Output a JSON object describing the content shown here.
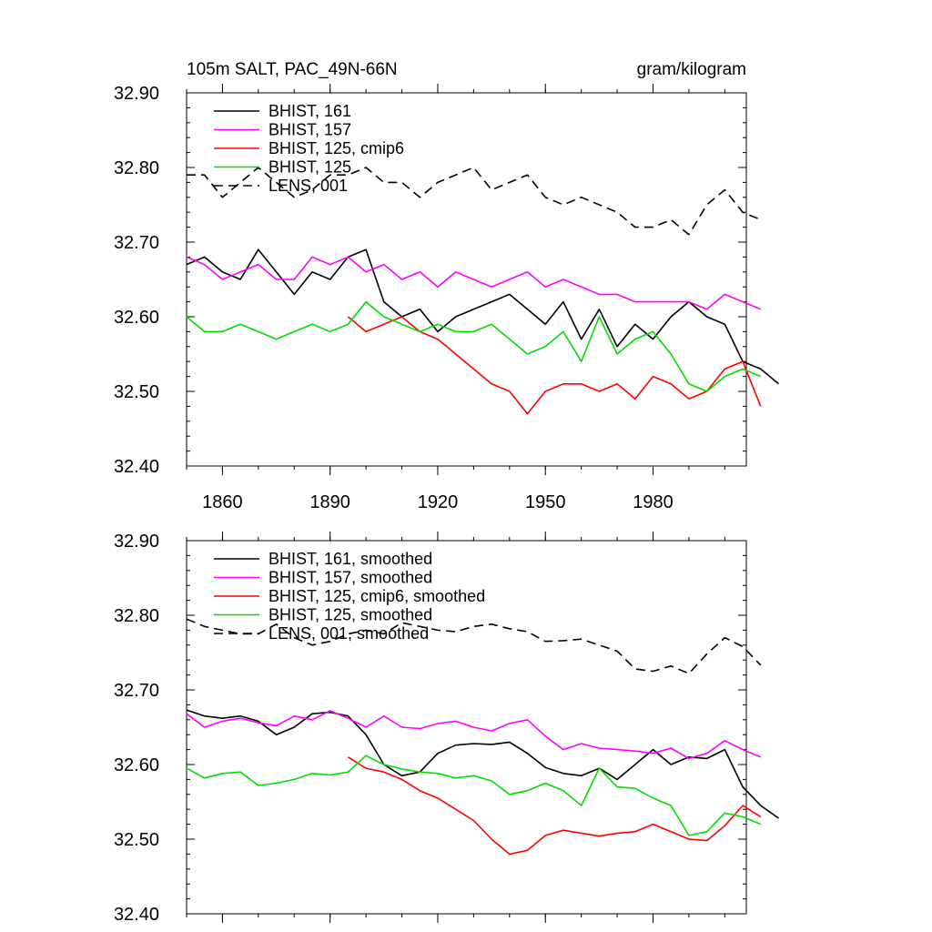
{
  "chart_data": [
    {
      "type": "line",
      "title_left": "105m SALT, PAC_49N-66N",
      "title_right": "gram/kilogram",
      "xlim": [
        1850,
        2006
      ],
      "ylim": [
        32.4,
        32.9
      ],
      "yticks": [
        "32.40",
        "32.50",
        "32.60",
        "32.70",
        "32.80",
        "32.90"
      ],
      "xticks": [
        "1860",
        "1890",
        "1920",
        "1950",
        "1980"
      ],
      "legend_position": "top-left",
      "series": [
        {
          "name": "BHIST, 161",
          "color": "#000000",
          "dash": "solid",
          "x_start": 1850,
          "x_step": 5,
          "values": [
            32.67,
            32.68,
            32.66,
            32.65,
            32.69,
            32.66,
            32.63,
            32.66,
            32.65,
            32.68,
            32.69,
            32.62,
            32.6,
            32.61,
            32.58,
            32.6,
            32.61,
            32.62,
            32.63,
            32.61,
            32.59,
            32.62,
            32.57,
            32.61,
            32.56,
            32.59,
            32.57,
            32.6,
            32.62,
            32.6,
            32.59,
            32.54,
            32.53,
            32.51
          ]
        },
        {
          "name": "BHIST, 157",
          "color": "#ff00ff",
          "dash": "solid",
          "x_start": 1850,
          "x_step": 5,
          "values": [
            32.68,
            32.67,
            32.65,
            32.66,
            32.67,
            32.65,
            32.65,
            32.68,
            32.67,
            32.68,
            32.66,
            32.67,
            32.65,
            32.66,
            32.64,
            32.66,
            32.65,
            32.64,
            32.65,
            32.66,
            32.64,
            32.65,
            32.64,
            32.63,
            32.63,
            32.62,
            32.62,
            32.62,
            32.62,
            32.61,
            32.63,
            32.62,
            32.61
          ]
        },
        {
          "name": "BHIST, 125, cmip6",
          "color": "#ff0000",
          "dash": "solid",
          "x_start": 1895,
          "x_step": 5,
          "values": [
            32.6,
            32.58,
            32.59,
            32.6,
            32.58,
            32.57,
            32.55,
            32.53,
            32.51,
            32.5,
            32.47,
            32.5,
            32.51,
            32.51,
            32.5,
            32.51,
            32.49,
            32.52,
            32.51,
            32.49,
            32.5,
            32.53,
            32.54,
            32.48
          ]
        },
        {
          "name": "BHIST, 125",
          "color": "#00dd00",
          "dash": "solid",
          "x_start": 1850,
          "x_step": 5,
          "values": [
            32.6,
            32.58,
            32.58,
            32.59,
            32.58,
            32.57,
            32.58,
            32.59,
            32.58,
            32.59,
            32.62,
            32.6,
            32.59,
            32.58,
            32.59,
            32.58,
            32.58,
            32.59,
            32.57,
            32.55,
            32.56,
            32.58,
            32.54,
            32.6,
            32.55,
            32.57,
            32.58,
            32.55,
            32.51,
            32.5,
            32.52,
            32.53,
            32.52
          ]
        },
        {
          "name": "LENS, 001",
          "color": "#000000",
          "dash": "dashed",
          "x_start": 1850,
          "x_step": 5,
          "values": [
            32.79,
            32.79,
            32.76,
            32.78,
            32.8,
            32.78,
            32.76,
            32.77,
            32.79,
            32.79,
            32.8,
            32.78,
            32.78,
            32.76,
            32.78,
            32.79,
            32.8,
            32.77,
            32.78,
            32.79,
            32.76,
            32.75,
            32.76,
            32.75,
            32.74,
            32.72,
            32.72,
            32.73,
            32.71,
            32.75,
            32.77,
            32.74,
            32.73
          ]
        }
      ]
    },
    {
      "type": "line",
      "xlim": [
        1850,
        2006
      ],
      "ylim": [
        32.4,
        32.9
      ],
      "yticks": [
        "32.40",
        "32.50",
        "32.60",
        "32.70",
        "32.80",
        "32.90"
      ],
      "legend_position": "top-left",
      "series": [
        {
          "name": "BHIST, 161, smoothed",
          "color": "#000000",
          "dash": "solid",
          "x_start": 1850,
          "x_step": 5,
          "values": [
            32.673,
            32.665,
            32.662,
            32.665,
            32.658,
            32.64,
            32.65,
            32.668,
            32.67,
            32.665,
            32.64,
            32.6,
            32.585,
            32.59,
            32.615,
            32.626,
            32.628,
            32.627,
            32.63,
            32.615,
            32.596,
            32.588,
            32.585,
            32.595,
            32.58,
            32.6,
            32.62,
            32.6,
            32.61,
            32.608,
            32.62,
            32.57,
            32.545,
            32.528
          ]
        },
        {
          "name": "BHIST, 157, smoothed",
          "color": "#ff00ff",
          "dash": "solid",
          "x_start": 1850,
          "x_step": 5,
          "values": [
            32.668,
            32.65,
            32.658,
            32.662,
            32.656,
            32.652,
            32.665,
            32.66,
            32.672,
            32.662,
            32.65,
            32.665,
            32.65,
            32.648,
            32.655,
            32.658,
            32.65,
            32.645,
            32.655,
            32.66,
            32.638,
            32.62,
            32.628,
            32.622,
            32.62,
            32.618,
            32.615,
            32.622,
            32.608,
            32.615,
            32.632,
            32.62,
            32.61
          ]
        },
        {
          "name": "BHIST, 125, cmip6, smoothed",
          "color": "#ff0000",
          "dash": "solid",
          "x_start": 1895,
          "x_step": 5,
          "values": [
            32.61,
            32.595,
            32.59,
            32.58,
            32.565,
            32.555,
            32.54,
            32.525,
            32.5,
            32.48,
            32.485,
            32.505,
            32.512,
            32.508,
            32.504,
            32.508,
            32.51,
            32.52,
            32.51,
            32.5,
            32.498,
            32.518,
            32.545,
            32.53
          ]
        },
        {
          "name": "BHIST, 125, smoothed",
          "color": "#00dd00",
          "dash": "solid",
          "x_start": 1850,
          "x_step": 5,
          "values": [
            32.595,
            32.582,
            32.588,
            32.59,
            32.572,
            32.575,
            32.58,
            32.588,
            32.586,
            32.59,
            32.612,
            32.6,
            32.594,
            32.59,
            32.588,
            32.582,
            32.585,
            32.578,
            32.56,
            32.565,
            32.575,
            32.565,
            32.545,
            32.595,
            32.57,
            32.568,
            32.555,
            32.545,
            32.505,
            32.51,
            32.535,
            32.53,
            32.52
          ]
        },
        {
          "name": "LENS, 001, smoothed",
          "color": "#000000",
          "dash": "dashed",
          "x_start": 1850,
          "x_step": 5,
          "values": [
            32.795,
            32.785,
            32.78,
            32.775,
            32.775,
            32.788,
            32.77,
            32.76,
            32.765,
            32.775,
            32.78,
            32.775,
            32.79,
            32.785,
            32.78,
            32.778,
            32.785,
            32.788,
            32.782,
            32.778,
            32.765,
            32.766,
            32.768,
            32.76,
            32.752,
            32.728,
            32.725,
            32.732,
            32.722,
            32.748,
            32.77,
            32.758,
            32.733
          ]
        }
      ]
    }
  ]
}
